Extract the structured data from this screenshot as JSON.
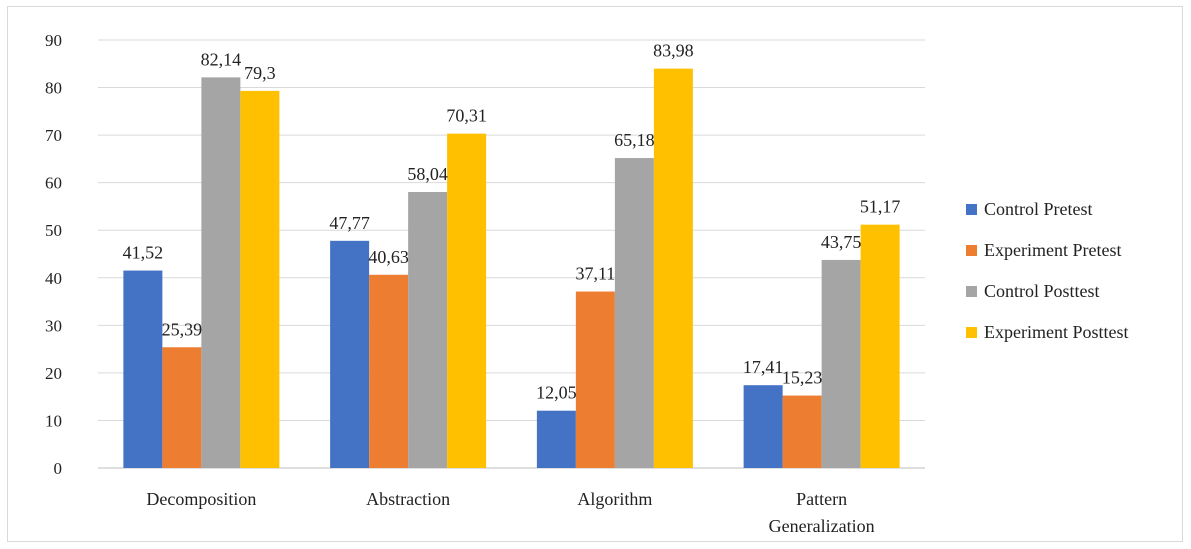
{
  "chart_data": {
    "type": "bar",
    "title": "",
    "xlabel": "",
    "ylabel": "",
    "ylim": [
      0,
      90
    ],
    "yticks": [
      0,
      10,
      20,
      30,
      40,
      50,
      60,
      70,
      80,
      90
    ],
    "grid": true,
    "legend_position": "right",
    "categories": [
      [
        "Decomposition"
      ],
      [
        "Abstraction"
      ],
      [
        "Algorithm"
      ],
      [
        "Pattern",
        "Generalization"
      ]
    ],
    "series": [
      {
        "name": "Control Pretest",
        "color": "#4472C4",
        "values": [
          41.52,
          47.77,
          12.05,
          17.41
        ],
        "labels": [
          "41,52",
          "47,77",
          "12,05",
          "17,41"
        ]
      },
      {
        "name": "Experiment Pretest",
        "color": "#ED7D31",
        "values": [
          25.39,
          40.63,
          37.11,
          15.23
        ],
        "labels": [
          "25,39",
          "40,63",
          "37,11",
          "15,23"
        ]
      },
      {
        "name": "Control Posttest",
        "color": "#A5A5A5",
        "values": [
          82.14,
          58.04,
          65.18,
          43.75
        ],
        "labels": [
          "82,14",
          "58,04",
          "65,18",
          "43,75"
        ]
      },
      {
        "name": "Experiment Posttest",
        "color": "#FFC000",
        "values": [
          79.3,
          70.31,
          83.98,
          51.17
        ],
        "labels": [
          "79,3",
          "70,31",
          "83,98",
          "51,17"
        ]
      }
    ]
  }
}
